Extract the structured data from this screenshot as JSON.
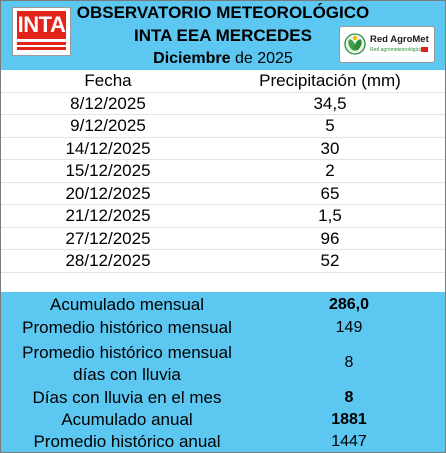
{
  "header": {
    "logo_text": "INTA",
    "title_line1": "OBSERVATORIO METEOROLÓGICO",
    "title_line2": "INTA EEA MERCEDES",
    "month": "Diciembre",
    "year_text": "de 2025",
    "partner_logo_name": "Red AgroMet",
    "partner_logo_sub": "Red agrometeorológica"
  },
  "table": {
    "col_date": "Fecha",
    "col_precip": "Precipitación (mm)",
    "rows": [
      {
        "date": "8/12/2025",
        "mm": "34,5"
      },
      {
        "date": "9/12/2025",
        "mm": "5"
      },
      {
        "date": "14/12/2025",
        "mm": "30"
      },
      {
        "date": "15/12/2025",
        "mm": "2"
      },
      {
        "date": "20/12/2025",
        "mm": "65"
      },
      {
        "date": "21/12/2025",
        "mm": "1,5"
      },
      {
        "date": "27/12/2025",
        "mm": "96"
      },
      {
        "date": "28/12/2025",
        "mm": "52"
      }
    ]
  },
  "summary": {
    "acum_mensual_label": "Acumulado mensual",
    "acum_mensual_value": "286,0",
    "prom_mensual_label": "Promedio histórico mensual",
    "prom_mensual_value": "149",
    "prom_dias_label_1": "Promedio histórico mensual",
    "prom_dias_label_2": "días con lluvia",
    "prom_dias_value": "8",
    "dias_lluvia_label": "Días con lluvia en el mes",
    "dias_lluvia_value": "8",
    "acum_anual_label": "Acumulado anual",
    "acum_anual_value": "1881",
    "prom_anual_label": "Promedio histórico anual",
    "prom_anual_value": "1447"
  },
  "colors": {
    "header_bg": "#5cc8f2",
    "summary_bg": "#5cc8f2",
    "inta_red": "#e2231a"
  }
}
